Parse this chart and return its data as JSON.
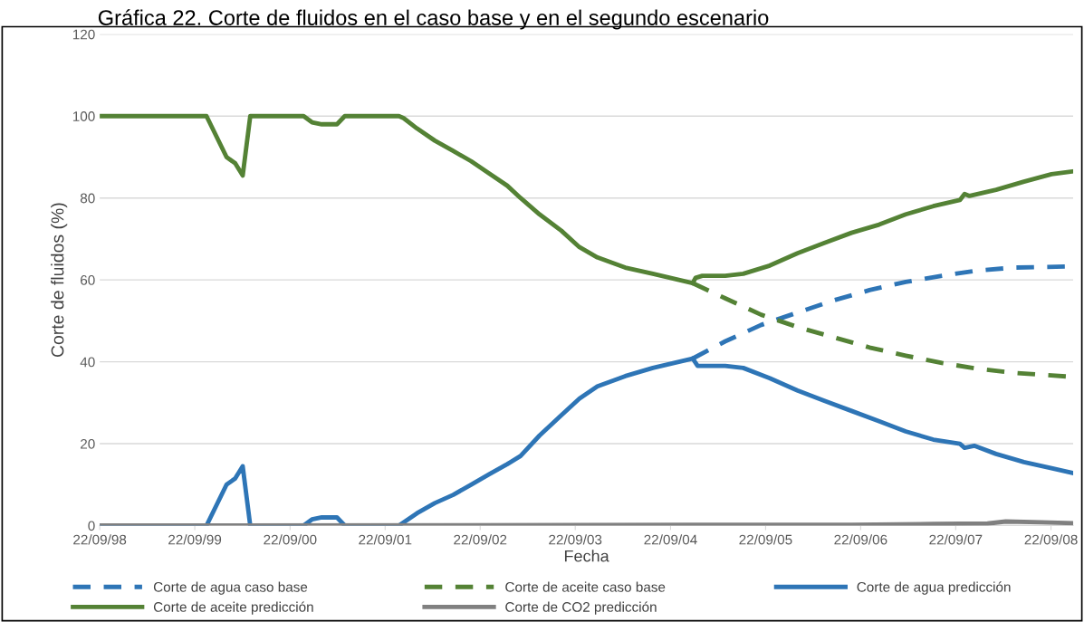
{
  "chart_data": {
    "type": "line",
    "title": "Gráfica 22. Corte de fluidos en el caso base y en el segundo escenario",
    "xlabel": "Fecha",
    "ylabel": "Corte de fluidos (%)",
    "xlim": [
      "1998-09-22",
      "2008-12-16"
    ],
    "ylim": [
      0,
      120
    ],
    "yticks": [
      0,
      20,
      40,
      60,
      80,
      100,
      120
    ],
    "xticks": [
      {
        "value": "1998-09-22",
        "label": "22/09/98"
      },
      {
        "value": "1999-09-22",
        "label": "22/09/99"
      },
      {
        "value": "2000-09-22",
        "label": "22/09/00"
      },
      {
        "value": "2001-09-22",
        "label": "22/09/01"
      },
      {
        "value": "2002-09-22",
        "label": "22/09/02"
      },
      {
        "value": "2003-09-22",
        "label": "22/09/03"
      },
      {
        "value": "2004-09-22",
        "label": "22/09/04"
      },
      {
        "value": "2005-09-22",
        "label": "22/09/05"
      },
      {
        "value": "2006-09-22",
        "label": "22/09/06"
      },
      {
        "value": "2007-09-22",
        "label": "22/09/07"
      },
      {
        "value": "2008-09-22",
        "label": "22/09/08"
      }
    ],
    "grid": "y",
    "legend": "bottom",
    "marker": "none",
    "series": [
      {
        "name": "Corte de agua caso base",
        "color": "#2e75b6",
        "line_style": "dashed",
        "x": [
          "2004-12-16",
          "2005-04-20",
          "2005-09-05",
          "2006-01-22",
          "2006-06-10",
          "2006-10-26",
          "2007-03-14",
          "2007-07-31",
          "2007-12-16",
          "2008-05-04",
          "2008-12-16"
        ],
        "values": [
          40.8,
          45,
          49,
          52,
          55,
          57.5,
          59.5,
          61,
          62.3,
          63,
          63.3
        ]
      },
      {
        "name": "Corte de aceite caso base",
        "color": "#548235",
        "line_style": "dashed",
        "x": [
          "2004-12-16",
          "2005-04-20",
          "2005-09-05",
          "2006-01-22",
          "2006-06-10",
          "2006-10-26",
          "2007-03-14",
          "2007-07-31",
          "2007-12-16",
          "2008-05-04",
          "2008-12-16"
        ],
        "values": [
          59.2,
          55.5,
          51.5,
          48.5,
          46,
          43.5,
          41.5,
          39.7,
          38.3,
          37.3,
          36.3
        ]
      },
      {
        "name": "Corte de agua predicción",
        "color": "#2e75b6",
        "line_style": "solid",
        "x": [
          "1998-09-22",
          "1999-11-06",
          "2000-01-22",
          "2000-02-24",
          "2000-03-24",
          "2000-04-22",
          "2000-11-13",
          "2000-12-15",
          "2001-01-22",
          "2001-03-21",
          "2001-04-20",
          "2001-11-14",
          "2002-01-22",
          "2002-04-01",
          "2002-06-10",
          "2002-08-18",
          "2002-10-26",
          "2003-01-04",
          "2003-02-24",
          "2003-05-08",
          "2003-07-31",
          "2003-10-08",
          "2003-12-16",
          "2004-04-01",
          "2004-07-16",
          "2004-12-16",
          "2005-01-04",
          "2005-04-20",
          "2005-06-28",
          "2005-10-08",
          "2006-01-22",
          "2006-05-04",
          "2006-08-18",
          "2006-12-02",
          "2007-03-14",
          "2007-06-28",
          "2007-10-08",
          "2007-10-26",
          "2007-12-02",
          "2008-02-24",
          "2008-06-10",
          "2008-09-24",
          "2008-12-16"
        ],
        "values": [
          0,
          0,
          10,
          11.5,
          14.5,
          0,
          0,
          1.5,
          2,
          2,
          0,
          0,
          3,
          5.5,
          7.5,
          10,
          12.5,
          15,
          17,
          22,
          27,
          31,
          34,
          36.5,
          38.5,
          40.8,
          39,
          39,
          38.5,
          36,
          33,
          30.5,
          28,
          25.5,
          23,
          21,
          20,
          19,
          19.5,
          17.5,
          15.5,
          14,
          12.8
        ]
      },
      {
        "name": "Corte de aceite predicción",
        "color": "#548235",
        "line_style": "solid",
        "x": [
          "1998-09-22",
          "1999-11-06",
          "2000-01-22",
          "2000-02-24",
          "2000-03-24",
          "2000-04-22",
          "2000-11-13",
          "2000-12-15",
          "2001-01-22",
          "2001-03-21",
          "2001-04-20",
          "2001-11-14",
          "2001-12-02",
          "2002-01-22",
          "2002-04-01",
          "2002-06-10",
          "2002-08-18",
          "2002-10-26",
          "2003-01-04",
          "2003-02-24",
          "2003-05-08",
          "2003-07-31",
          "2003-10-08",
          "2003-12-16",
          "2004-04-01",
          "2004-07-16",
          "2004-12-16",
          "2004-12-27",
          "2005-01-22",
          "2005-04-20",
          "2005-06-28",
          "2005-10-08",
          "2006-01-22",
          "2006-05-04",
          "2006-08-18",
          "2006-12-02",
          "2007-03-14",
          "2007-06-28",
          "2007-10-08",
          "2007-10-26",
          "2007-11-14",
          "2008-02-24",
          "2008-06-10",
          "2008-09-24",
          "2008-12-16"
        ],
        "values": [
          100,
          100,
          90,
          88.5,
          85.5,
          100,
          100,
          98.5,
          98,
          98,
          100,
          100,
          99.5,
          97,
          94,
          91.5,
          89,
          86,
          83,
          80,
          76,
          72,
          68,
          65.5,
          63,
          61.5,
          59.2,
          60.5,
          61,
          61,
          61.5,
          63.5,
          66.5,
          69,
          71.5,
          73.5,
          76,
          78,
          79.5,
          81,
          80.5,
          82,
          84,
          85.8,
          86.5
        ]
      },
      {
        "name": "Corte de CO2 predicción",
        "color": "#808080",
        "line_style": "solid",
        "x": [
          "1998-09-22",
          "2006-08-18",
          "2007-06-28",
          "2008-01-22",
          "2008-04-01",
          "2008-08-18",
          "2008-12-16"
        ],
        "values": [
          0,
          0.2,
          0.4,
          0.5,
          1.0,
          0.8,
          0.6
        ]
      }
    ]
  }
}
